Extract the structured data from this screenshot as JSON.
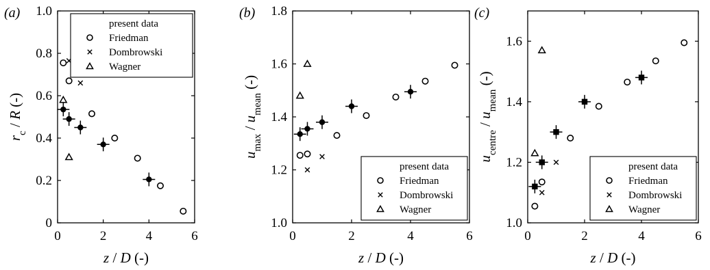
{
  "chart_data": [
    {
      "type": "scatter",
      "panel_label": "(a)",
      "xlabel": "z / D (-)",
      "ylabel": "r_c / R (-)",
      "xlim": [
        0,
        6
      ],
      "ylim": [
        0,
        1.0
      ],
      "xticks": [
        "0",
        "2",
        "4",
        "6"
      ],
      "yticks": [
        "0",
        "0.2",
        "0.4",
        "0.6",
        "0.8",
        "1.0"
      ],
      "legend_position": "top-right",
      "series": [
        {
          "name": "present data",
          "marker": "filled-circle-errorbar",
          "x": [
            0.25,
            0.5,
            1.0,
            2.0,
            4.0
          ],
          "y": [
            0.535,
            0.49,
            0.45,
            0.37,
            0.205
          ]
        },
        {
          "name": "Friedman",
          "marker": "open-circle",
          "x": [
            0.25,
            0.5,
            1.5,
            2.5,
            3.5,
            4.5,
            5.5
          ],
          "y": [
            0.755,
            0.67,
            0.515,
            0.4,
            0.305,
            0.175,
            0.055
          ]
        },
        {
          "name": "Dombrowski",
          "marker": "cross",
          "x": [
            0.5,
            1.0
          ],
          "y": [
            0.765,
            0.66
          ]
        },
        {
          "name": "Wagner",
          "marker": "open-triangle",
          "x": [
            0.25,
            0.5
          ],
          "y": [
            0.58,
            0.31
          ]
        }
      ]
    },
    {
      "type": "scatter",
      "panel_label": "(b)",
      "xlabel": "z / D (-)",
      "ylabel": "u_max / u_mean (-)",
      "xlim": [
        0,
        6
      ],
      "ylim": [
        1.0,
        1.8
      ],
      "xticks": [
        "0",
        "2",
        "4",
        "6"
      ],
      "yticks": [
        "1.0",
        "1.2",
        "1.4",
        "1.6",
        "1.8"
      ],
      "legend_position": "bottom-right",
      "series": [
        {
          "name": "present data",
          "marker": "filled-circle-errorbar",
          "x": [
            0.25,
            0.5,
            1.0,
            2.0,
            4.0
          ],
          "y": [
            1.335,
            1.355,
            1.38,
            1.44,
            1.495
          ]
        },
        {
          "name": "Friedman",
          "marker": "open-circle",
          "x": [
            0.25,
            0.5,
            1.5,
            2.5,
            3.5,
            4.5,
            5.5
          ],
          "y": [
            1.255,
            1.26,
            1.33,
            1.405,
            1.475,
            1.535,
            1.595
          ]
        },
        {
          "name": "Dombrowski",
          "marker": "cross",
          "x": [
            0.5,
            1.0
          ],
          "y": [
            1.2,
            1.25
          ]
        },
        {
          "name": "Wagner",
          "marker": "open-triangle",
          "x": [
            0.25,
            0.5
          ],
          "y": [
            1.48,
            1.6
          ]
        }
      ]
    },
    {
      "type": "scatter",
      "panel_label": "(c)",
      "xlabel": "z / D (-)",
      "ylabel": "u_centre / u_mean (-)",
      "xlim": [
        0,
        6
      ],
      "ylim": [
        1.0,
        1.7
      ],
      "xticks": [
        "0",
        "2",
        "4",
        "6"
      ],
      "yticks": [
        "1.0",
        "1.2",
        "1.4",
        "1.6"
      ],
      "legend_position": "bottom-right",
      "series": [
        {
          "name": "present data",
          "marker": "filled-square-errorbar",
          "x": [
            0.25,
            0.5,
            1.0,
            2.0,
            4.0
          ],
          "y": [
            1.12,
            1.2,
            1.3,
            1.4,
            1.48
          ]
        },
        {
          "name": "Friedman",
          "marker": "open-circle",
          "x": [
            0.25,
            0.5,
            1.5,
            2.5,
            3.5,
            4.5,
            5.5
          ],
          "y": [
            1.055,
            1.135,
            1.28,
            1.385,
            1.465,
            1.535,
            1.595
          ]
        },
        {
          "name": "Dombrowski",
          "marker": "cross",
          "x": [
            0.5,
            1.0
          ],
          "y": [
            1.1,
            1.2
          ]
        },
        {
          "name": "Wagner",
          "marker": "open-triangle",
          "x": [
            0.25,
            0.5
          ],
          "y": [
            1.23,
            1.57
          ]
        }
      ]
    }
  ]
}
